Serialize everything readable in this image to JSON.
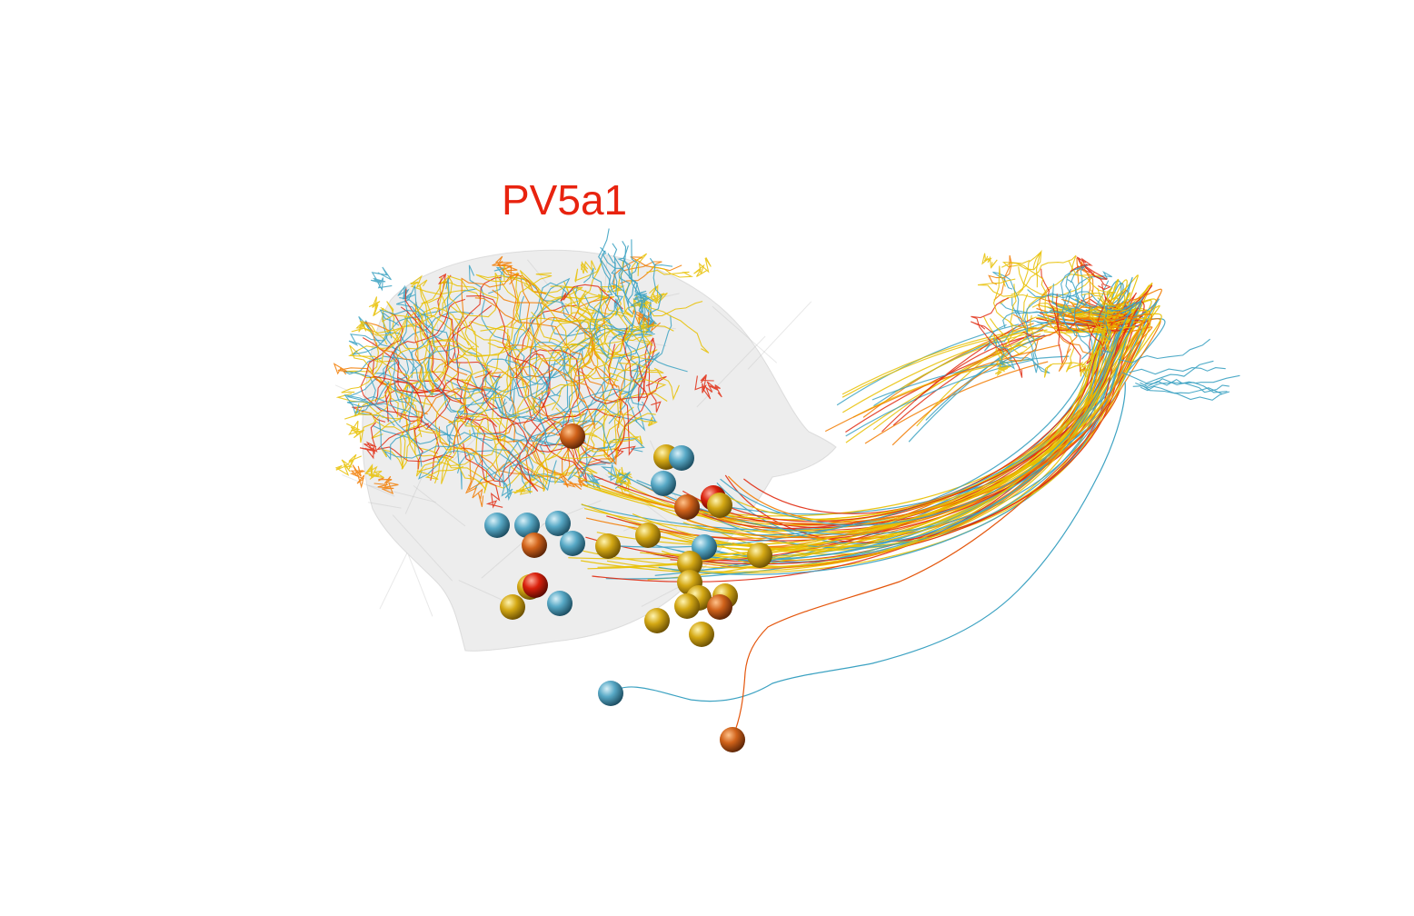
{
  "label": {
    "text": "PV5a1",
    "color": "#e8230f"
  },
  "palette": {
    "red": "#e02a10",
    "orange": "#f27b00",
    "yellow": "#e8c000",
    "blue": "#3ca2c2",
    "neuropil": "#d6d6d6"
  }
}
